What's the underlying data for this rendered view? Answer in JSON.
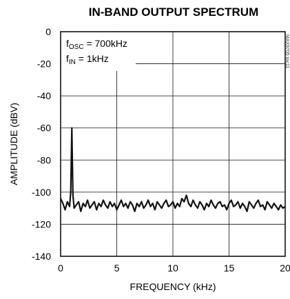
{
  "chart_data": {
    "type": "line",
    "title": "IN-BAND OUTPUT SPECTRUM",
    "xlabel": "FREQUENCY (kHz)",
    "ylabel": "AMPLITUDE (dBV)",
    "xlim": [
      0,
      20
    ],
    "ylim": [
      -140,
      0
    ],
    "xticks": [
      "0",
      "5",
      "10",
      "15",
      "20"
    ],
    "yticks": [
      "0",
      "-20",
      "-40",
      "-60",
      "-80",
      "-100",
      "-120",
      "-140"
    ],
    "grid": true,
    "annotations": [
      {
        "main": "f",
        "sub": "OSC",
        "rest": " = 700kHz"
      },
      {
        "main": "f",
        "sub": "IN",
        "rest": " = 1kHz"
      }
    ],
    "side_code": "MAX9705 toc11",
    "series": [
      {
        "color": "#111111",
        "x": [
          0.0,
          0.2,
          0.4,
          0.6,
          0.8,
          0.9,
          0.95,
          1.0,
          1.05,
          1.1,
          1.2,
          1.4,
          1.6,
          1.8,
          2.0,
          2.2,
          2.4,
          2.6,
          2.8,
          3.0,
          3.2,
          3.4,
          3.6,
          3.8,
          4.0,
          4.2,
          4.4,
          4.6,
          4.8,
          5.0,
          5.2,
          5.4,
          5.6,
          5.8,
          6.0,
          6.2,
          6.4,
          6.6,
          6.8,
          7.0,
          7.2,
          7.4,
          7.6,
          7.8,
          8.0,
          8.2,
          8.4,
          8.6,
          8.8,
          9.0,
          9.2,
          9.4,
          9.6,
          9.8,
          10.0,
          10.2,
          10.4,
          10.6,
          10.8,
          11.0,
          11.2,
          11.4,
          11.6,
          11.8,
          12.0,
          12.2,
          12.4,
          12.6,
          12.8,
          13.0,
          13.2,
          13.4,
          13.6,
          13.8,
          14.0,
          14.2,
          14.4,
          14.6,
          14.8,
          15.0,
          15.2,
          15.4,
          15.6,
          15.8,
          16.0,
          16.2,
          16.4,
          16.6,
          16.8,
          17.0,
          17.2,
          17.4,
          17.6,
          17.8,
          18.0,
          18.2,
          18.4,
          18.6,
          18.8,
          19.0,
          19.2,
          19.4,
          19.6,
          19.8,
          20.0
        ],
        "y": [
          -104,
          -107,
          -111,
          -106,
          -109,
          -100,
          -80,
          -60,
          -82,
          -102,
          -110,
          -108,
          -106,
          -112,
          -107,
          -109,
          -105,
          -110,
          -108,
          -106,
          -111,
          -107,
          -109,
          -105,
          -108,
          -110,
          -106,
          -109,
          -107,
          -111,
          -108,
          -105,
          -109,
          -107,
          -110,
          -106,
          -108,
          -112,
          -107,
          -109,
          -106,
          -110,
          -108,
          -105,
          -109,
          -107,
          -111,
          -106,
          -108,
          -110,
          -107,
          -105,
          -109,
          -108,
          -106,
          -110,
          -107,
          -109,
          -104,
          -106,
          -102,
          -107,
          -109,
          -105,
          -108,
          -110,
          -106,
          -108,
          -111,
          -107,
          -109,
          -105,
          -108,
          -110,
          -107,
          -106,
          -109,
          -108,
          -111,
          -107,
          -105,
          -109,
          -108,
          -106,
          -110,
          -107,
          -109,
          -112,
          -106,
          -108,
          -110,
          -107,
          -105,
          -109,
          -108,
          -111,
          -106,
          -108,
          -110,
          -107,
          -109,
          -111,
          -108,
          -110,
          -109
        ]
      }
    ]
  }
}
